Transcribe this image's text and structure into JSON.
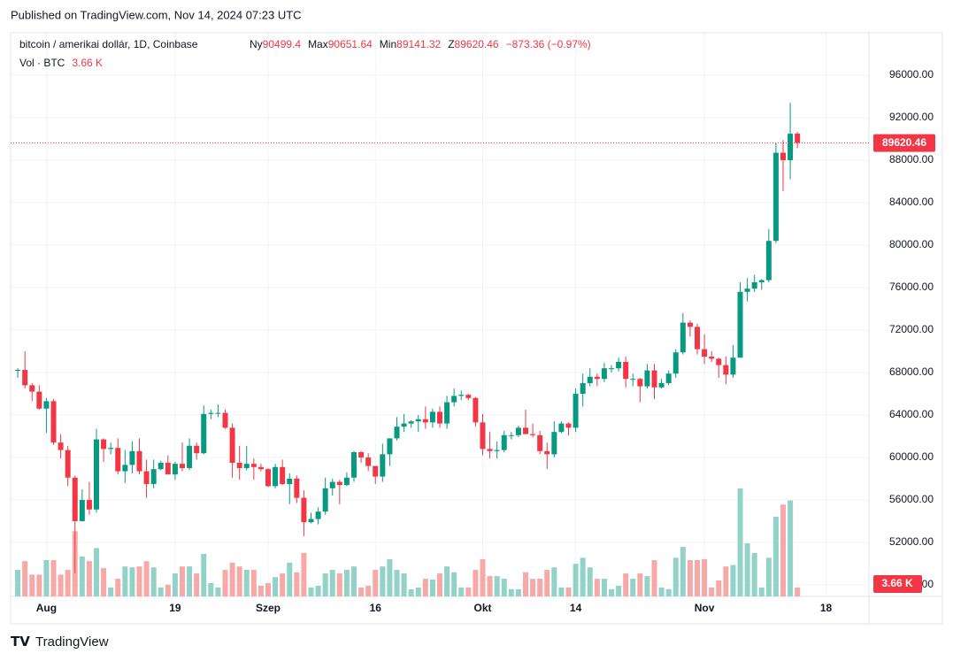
{
  "published": "Published on TradingView.com, Nov 14, 2024 07:23 UTC",
  "brand": "TradingView",
  "chart_data": {
    "type": "candlestick",
    "symbol": "bitcoin / amerikai dollár, 1D, Coinbase",
    "ohlc_labels": [
      "Ny",
      "Max",
      "Min",
      "Z"
    ],
    "change": "−873.36 (−0.97%)",
    "volume_title": "Vol · BTC",
    "volume_label": "3.66 K",
    "up_color": "#089981",
    "down_color": "#f23645",
    "up_volume_color": "#92d2c7",
    "down_volume_color": "#f7a9a7",
    "xlim": [
      -1,
      119
    ],
    "xticks": [
      {
        "value": 4,
        "label": "Aug"
      },
      {
        "value": 22,
        "label": "19"
      },
      {
        "value": 35,
        "label": "Szep"
      },
      {
        "value": 50,
        "label": "16"
      },
      {
        "value": 65,
        "label": "Okt"
      },
      {
        "value": 78,
        "label": "14"
      },
      {
        "value": 96,
        "label": "Nov"
      },
      {
        "value": 113,
        "label": "18"
      }
    ],
    "ylim": [
      44330,
      99920
    ],
    "yticks": [
      {
        "value": 48000,
        "label": "48000.00"
      },
      {
        "value": 52000,
        "label": "52000.00"
      },
      {
        "value": 56000,
        "label": "56000.00"
      },
      {
        "value": 60000,
        "label": "60000.00"
      },
      {
        "value": 64000,
        "label": "64000.00"
      },
      {
        "value": 68000,
        "label": "68000.00"
      },
      {
        "value": 72000,
        "label": "72000.00"
      },
      {
        "value": 76000,
        "label": "76000.00"
      },
      {
        "value": 80000,
        "label": "80000.00"
      },
      {
        "value": 84000,
        "label": "84000.00"
      },
      {
        "value": 88000,
        "label": "88000.00"
      },
      {
        "value": 92000,
        "label": "92000.00"
      },
      {
        "value": 96000,
        "label": "96000.00"
      }
    ],
    "grid": true,
    "open": [
      68200,
      68250,
      66800,
      66200,
      64600,
      65300,
      61400,
      60700,
      58100,
      54000,
      56000,
      55100,
      61700,
      60800,
      60900,
      58700,
      59300,
      60600,
      58700,
      57500,
      58900,
      59500,
      58400,
      59400,
      59000,
      61100,
      60400,
      64100,
      64200,
      64200,
      62800,
      59500,
      59000,
      59400,
      59100,
      58900,
      57300,
      59100,
      57500,
      58000,
      56200,
      53900,
      54200,
      54900,
      57100,
      57700,
      57400,
      58100,
      60500,
      60000,
      59200,
      58200,
      60300,
      61800,
      62900,
      63200,
      63400,
      63600,
      63300,
      64300,
      63200,
      65200,
      65800,
      65900,
      65600,
      63300,
      60800,
      60600,
      60700,
      62100,
      62100,
      62800,
      62200,
      62100,
      60600,
      60300,
      62400,
      63200,
      62800,
      66000,
      67000,
      67600,
      67400,
      68400,
      68400,
      69000,
      67400,
      67400,
      66700,
      68200,
      66600,
      67000,
      67900,
      69900,
      72700,
      72300,
      70200,
      69500,
      69300,
      68700,
      67800,
      69400,
      75600,
      75900,
      76500,
      76700,
      80400,
      88700,
      88000,
      90499.4
    ],
    "high": [
      68400,
      70000,
      67000,
      66800,
      65600,
      65500,
      62200,
      61100,
      58300,
      57000,
      57700,
      62700,
      61800,
      61400,
      61800,
      60700,
      61500,
      61800,
      59800,
      59800,
      59700,
      60200,
      59600,
      61400,
      61800,
      61400,
      64900,
      64500,
      65000,
      64500,
      63200,
      61100,
      61100,
      59900,
      59400,
      59000,
      59400,
      59800,
      58500,
      58300,
      56900,
      54800,
      55300,
      58100,
      58000,
      57900,
      58600,
      60600,
      60600,
      60400,
      59200,
      61300,
      61800,
      63800,
      64100,
      63500,
      64000,
      64800,
      64600,
      64800,
      65800,
      66500,
      66300,
      66000,
      65700,
      64100,
      62400,
      61500,
      62500,
      62400,
      63000,
      64500,
      63200,
      62500,
      61400,
      63400,
      63400,
      63300,
      66500,
      67900,
      68400,
      67900,
      68900,
      68700,
      69400,
      69500,
      67900,
      67500,
      68800,
      68800,
      67400,
      68200,
      70200,
      73600,
      72900,
      72600,
      71600,
      70000,
      69400,
      69500,
      70600,
      76500,
      76900,
      77200,
      76800,
      81500,
      89600,
      89900,
      93400,
      90651.64
    ],
    "low": [
      67500,
      66500,
      65300,
      64500,
      62300,
      61200,
      59900,
      57300,
      49100,
      54000,
      54600,
      54800,
      59600,
      60300,
      58400,
      57600,
      58500,
      58400,
      56200,
      57100,
      58800,
      58400,
      57900,
      58700,
      58800,
      59800,
      60300,
      63600,
      63800,
      62700,
      58100,
      57900,
      58800,
      57900,
      58700,
      57200,
      57100,
      57400,
      55600,
      55700,
      52600,
      53800,
      53700,
      54600,
      56400,
      55600,
      57300,
      57700,
      59500,
      58700,
      57500,
      57700,
      59200,
      61600,
      62400,
      62800,
      62400,
      62700,
      62800,
      62800,
      62700,
      64800,
      65400,
      65400,
      62900,
      60200,
      59900,
      59900,
      60500,
      61700,
      61900,
      62200,
      61900,
      60300,
      58900,
      60000,
      62300,
      62100,
      62400,
      64800,
      66700,
      66700,
      67100,
      68000,
      68100,
      66600,
      66700,
      65200,
      66500,
      65500,
      66500,
      66800,
      67500,
      69700,
      71400,
      69700,
      68800,
      69000,
      67500,
      66900,
      67500,
      69400,
      74700,
      75600,
      75800,
      76500,
      80200,
      85100,
      86200,
      89141.32
    ],
    "close": [
      68250,
      66800,
      66200,
      64600,
      65300,
      61400,
      60700,
      58100,
      54000,
      56000,
      55100,
      61700,
      60800,
      60900,
      58700,
      59300,
      60600,
      58700,
      57500,
      58900,
      59500,
      58400,
      59400,
      59000,
      61100,
      60400,
      64100,
      64200,
      64200,
      62800,
      59500,
      59000,
      59400,
      59100,
      58900,
      57300,
      59100,
      57500,
      58000,
      56200,
      53900,
      54200,
      54900,
      57100,
      57700,
      57400,
      58100,
      60500,
      60000,
      59200,
      58200,
      60300,
      61800,
      62900,
      63200,
      63400,
      63600,
      63300,
      64300,
      63200,
      65200,
      65800,
      65900,
      65600,
      63300,
      60800,
      60600,
      60700,
      62100,
      62100,
      62800,
      62200,
      62100,
      60600,
      60300,
      62400,
      63200,
      62800,
      66000,
      67000,
      67600,
      67400,
      68400,
      68400,
      69000,
      67400,
      67400,
      66700,
      68200,
      66600,
      67000,
      67900,
      69900,
      72700,
      72300,
      70200,
      69500,
      69300,
      68700,
      67800,
      69400,
      75600,
      75900,
      76500,
      76700,
      80400,
      88700,
      88000,
      90493.82,
      89620.46
    ],
    "volume": [
      11,
      14.6,
      9,
      9,
      15,
      15,
      9,
      11,
      27,
      16.5,
      14.6,
      20,
      11.7,
      3.7,
      7.3,
      12.4,
      12,
      12.4,
      14.6,
      12,
      3.7,
      4.8,
      9.5,
      12.4,
      12.4,
      9.5,
      17.6,
      5.5,
      3.7,
      11,
      14,
      12.4,
      11,
      11,
      4.4,
      5.5,
      8,
      9.5,
      14,
      10,
      18,
      3.7,
      4.4,
      9.5,
      11,
      9.5,
      11,
      12.4,
      3.7,
      4.4,
      11,
      12.4,
      15.4,
      11,
      9.5,
      2.9,
      3.7,
      7.3,
      7,
      9.5,
      12.4,
      10,
      3.7,
      3.7,
      11,
      15.4,
      8.4,
      8.4,
      7.3,
      3,
      3,
      10,
      7.3,
      7.3,
      11,
      12,
      3.7,
      3.7,
      13.5,
      16,
      12,
      7.3,
      7.3,
      3,
      4.4,
      9.5,
      7.3,
      9.5,
      8.4,
      15,
      3.7,
      3,
      16,
      20.5,
      15,
      15,
      15.4,
      3.7,
      6.6,
      12.4,
      13,
      44.7,
      22,
      18,
      3.7,
      16,
      33,
      38,
      39.7,
      3.66
    ]
  }
}
